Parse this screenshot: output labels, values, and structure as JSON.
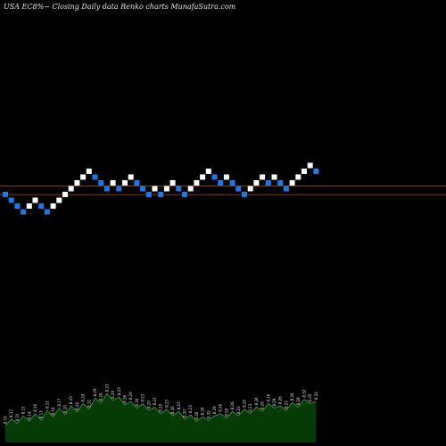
{
  "title": "USA EC8%~  Closing Daily data  Renko  charts MunafaSutra.com",
  "colors": {
    "background": "#000000",
    "up_brick": "#ffffff",
    "down_brick": "#1e78e6",
    "line": "#8a3a10",
    "volume_fill": "#063a06",
    "volume_line": "#3a8a3a",
    "volume_text": "#e0e0e0"
  },
  "chart_data": {
    "type": "renko",
    "bricks": [
      {
        "level": 0,
        "dir": "down"
      },
      {
        "level": -1,
        "dir": "down"
      },
      {
        "level": -2,
        "dir": "down"
      },
      {
        "level": -3,
        "dir": "down"
      },
      {
        "level": -2,
        "dir": "up"
      },
      {
        "level": -1,
        "dir": "up"
      },
      {
        "level": -2,
        "dir": "down"
      },
      {
        "level": -3,
        "dir": "down"
      },
      {
        "level": -2,
        "dir": "up"
      },
      {
        "level": -1,
        "dir": "up"
      },
      {
        "level": 0,
        "dir": "up"
      },
      {
        "level": 1,
        "dir": "up"
      },
      {
        "level": 2,
        "dir": "up"
      },
      {
        "level": 3,
        "dir": "up"
      },
      {
        "level": 4,
        "dir": "up"
      },
      {
        "level": 3,
        "dir": "down"
      },
      {
        "level": 2,
        "dir": "down"
      },
      {
        "level": 1,
        "dir": "down"
      },
      {
        "level": 2,
        "dir": "up"
      },
      {
        "level": 1,
        "dir": "down"
      },
      {
        "level": 2,
        "dir": "up"
      },
      {
        "level": 3,
        "dir": "up"
      },
      {
        "level": 2,
        "dir": "down"
      },
      {
        "level": 1,
        "dir": "down"
      },
      {
        "level": 0,
        "dir": "down"
      },
      {
        "level": 1,
        "dir": "up"
      },
      {
        "level": 0,
        "dir": "down"
      },
      {
        "level": 1,
        "dir": "up"
      },
      {
        "level": 2,
        "dir": "up"
      },
      {
        "level": 1,
        "dir": "down"
      },
      {
        "level": 0,
        "dir": "down"
      },
      {
        "level": 1,
        "dir": "up"
      },
      {
        "level": 2,
        "dir": "up"
      },
      {
        "level": 3,
        "dir": "up"
      },
      {
        "level": 4,
        "dir": "up"
      },
      {
        "level": 3,
        "dir": "down"
      },
      {
        "level": 2,
        "dir": "down"
      },
      {
        "level": 3,
        "dir": "up"
      },
      {
        "level": 2,
        "dir": "down"
      },
      {
        "level": 1,
        "dir": "down"
      },
      {
        "level": 0,
        "dir": "down"
      },
      {
        "level": 1,
        "dir": "up"
      },
      {
        "level": 2,
        "dir": "up"
      },
      {
        "level": 3,
        "dir": "up"
      },
      {
        "level": 2,
        "dir": "down"
      },
      {
        "level": 3,
        "dir": "up"
      },
      {
        "level": 2,
        "dir": "down"
      },
      {
        "level": 1,
        "dir": "down"
      },
      {
        "level": 2,
        "dir": "up"
      },
      {
        "level": 3,
        "dir": "up"
      },
      {
        "level": 4,
        "dir": "up"
      },
      {
        "level": 5,
        "dir": "up"
      },
      {
        "level": 4,
        "dir": "down"
      }
    ],
    "reference_lines": [
      1,
      -0.5
    ],
    "volume": {
      "values": [
        30,
        42,
        35,
        48,
        38,
        52,
        40,
        58,
        46,
        62,
        50,
        66,
        55,
        70,
        60,
        80,
        72,
        88,
        76,
        82,
        68,
        74,
        62,
        70,
        58,
        64,
        52,
        60,
        48,
        56,
        42,
        50,
        38,
        46,
        40,
        48,
        52,
        44,
        56,
        48,
        60,
        52,
        64,
        56,
        70,
        62,
        66,
        58,
        72,
        64,
        78,
        70,
        74
      ],
      "labels": [
        "8.19",
        "8.17",
        "8.15",
        "8.12",
        "8.14",
        "8.16",
        "8.13",
        "8.11",
        "8.14",
        "8.17",
        "8.20",
        "8.23",
        "8.26",
        "8.29",
        "8.32",
        "8.29",
        "8.26",
        "8.23",
        "8.26",
        "8.23",
        "8.26",
        "8.29",
        "8.26",
        "8.23",
        "8.20",
        "8.23",
        "8.20",
        "8.23",
        "8.26",
        "8.23",
        "8.20",
        "8.23",
        "8.26",
        "8.29",
        "8.32",
        "8.29",
        "8.26",
        "8.29",
        "8.26",
        "8.23",
        "8.20",
        "8.23",
        "8.26",
        "8.29",
        "8.26",
        "8.29",
        "8.26",
        "8.23",
        "8.26",
        "8.29",
        "8.32",
        "8.35",
        "8.32"
      ]
    }
  }
}
